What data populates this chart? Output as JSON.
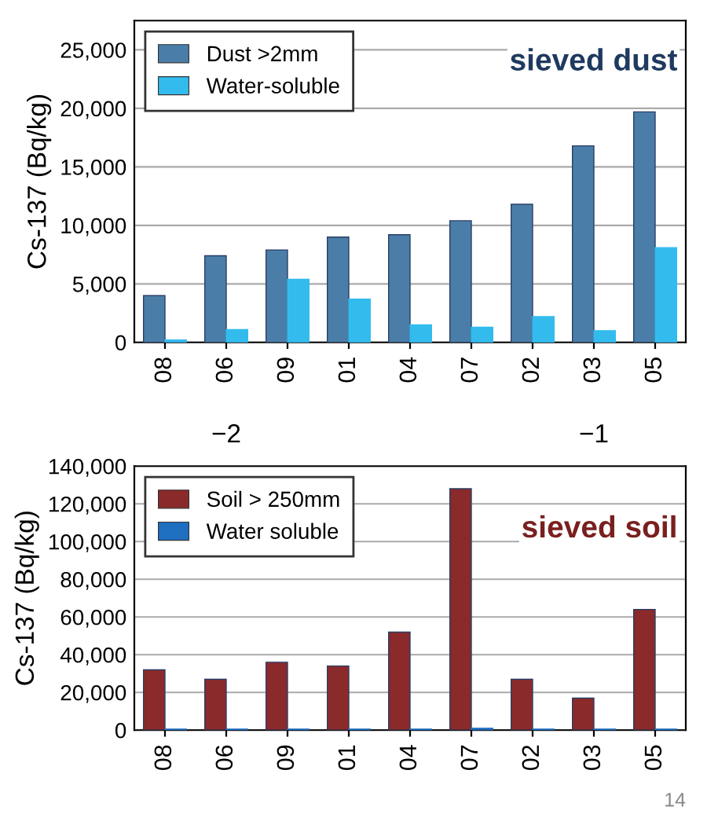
{
  "chart_data": [
    {
      "type": "bar",
      "ylabel": "Cs-137 (Bq/kg)",
      "categories": [
        "08",
        "06",
        "09",
        "01",
        "04",
        "07",
        "02",
        "03",
        "05"
      ],
      "series": [
        {
          "name": "Dust >2mm",
          "color": "#4a7ea8",
          "values": [
            4000,
            7400,
            7900,
            9000,
            9200,
            10400,
            11800,
            16800,
            19700
          ]
        },
        {
          "name": "Water-soluble",
          "color": "#33bbee",
          "values": [
            200,
            1100,
            5400,
            3700,
            1500,
            1300,
            2200,
            1000,
            8100
          ]
        }
      ],
      "ylim": [
        0,
        27500
      ],
      "yticks": [
        {
          "value": 0,
          "label": "0"
        },
        {
          "value": 5000,
          "label": "5,000"
        },
        {
          "value": 10000,
          "label": "10,000"
        },
        {
          "value": 15000,
          "label": "15,000"
        },
        {
          "value": 20000,
          "label": "20,000"
        },
        {
          "value": 25000,
          "label": "25,000"
        }
      ],
      "grid": "y",
      "legend": "top left",
      "annotations": [
        "sieved dust",
        "−2",
        "−1"
      ]
    },
    {
      "type": "bar",
      "ylabel": "Cs-137 (Bq/kg)",
      "categories": [
        "08",
        "06",
        "09",
        "01",
        "04",
        "07",
        "02",
        "03",
        "05"
      ],
      "series": [
        {
          "name": "Soil > 250mm",
          "color": "#8b2a2a",
          "values": [
            32000,
            27000,
            36000,
            34000,
            52000,
            128000,
            27000,
            17000,
            64000
          ]
        },
        {
          "name": "Water soluble",
          "color": "#1f6fc0",
          "values": [
            500,
            500,
            500,
            500,
            500,
            1000,
            500,
            500,
            500
          ]
        }
      ],
      "ylim": [
        0,
        140000
      ],
      "yticks": [
        {
          "value": 0,
          "label": "0"
        },
        {
          "value": 20000,
          "label": "20,000"
        },
        {
          "value": 40000,
          "label": "40,000"
        },
        {
          "value": 60000,
          "label": "60,000"
        },
        {
          "value": 80000,
          "label": "80,000"
        },
        {
          "value": 100000,
          "label": "100,000"
        },
        {
          "value": 120000,
          "label": "120,000"
        },
        {
          "value": 140000,
          "label": "140,000"
        }
      ],
      "grid": "y",
      "legend": "top left",
      "annotations": [
        "sieved soil",
        "14"
      ]
    }
  ]
}
